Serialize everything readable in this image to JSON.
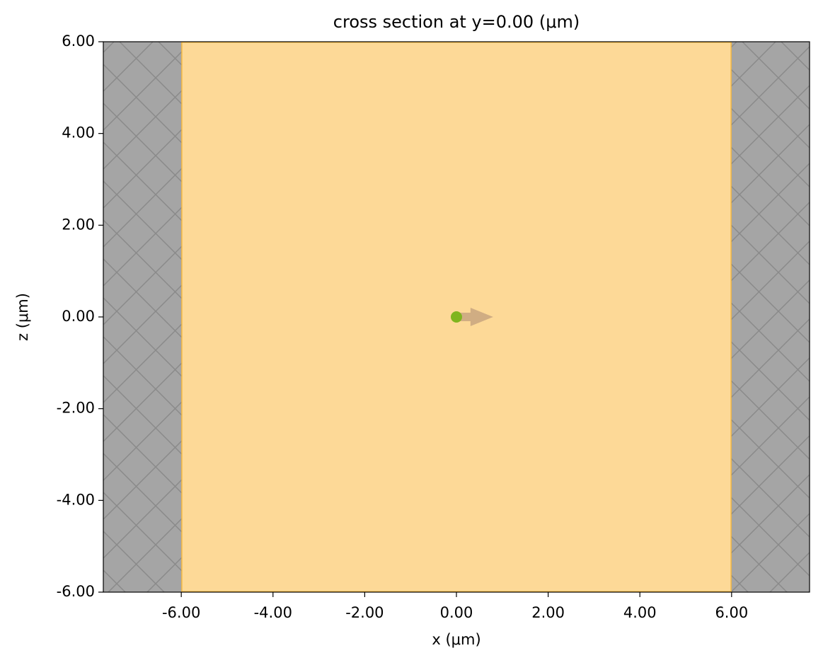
{
  "chart_data": {
    "type": "cross-section",
    "title": "cross section at y=0.00 (μm)",
    "xlabel": "x (μm)",
    "ylabel": "z (μm)",
    "xlim": [
      -7.7,
      7.7
    ],
    "ylim": [
      -6,
      6
    ],
    "xticks": [
      {
        "value": -6,
        "label": "-6.00"
      },
      {
        "value": -4,
        "label": "-4.00"
      },
      {
        "value": -2,
        "label": "-2.00"
      },
      {
        "value": 0,
        "label": "0.00"
      },
      {
        "value": 2,
        "label": "2.00"
      },
      {
        "value": 4,
        "label": "4.00"
      },
      {
        "value": 6,
        "label": "6.00"
      }
    ],
    "yticks": [
      {
        "value": -6,
        "label": "-6.00"
      },
      {
        "value": -4,
        "label": "-4.00"
      },
      {
        "value": -2,
        "label": "-2.00"
      },
      {
        "value": 0,
        "label": "0.00"
      },
      {
        "value": 2,
        "label": "2.00"
      },
      {
        "value": 4,
        "label": "4.00"
      },
      {
        "value": 6,
        "label": "6.00"
      }
    ],
    "medium": {
      "x": [
        -6,
        6
      ],
      "z": [
        -6,
        6
      ],
      "color": "#fdd997",
      "edge": "#f5b840"
    },
    "pml": [
      {
        "x": [
          -7.7,
          -6
        ],
        "z": [
          -6,
          6
        ],
        "color": "#a5a5a5"
      },
      {
        "x": [
          6,
          7.7
        ],
        "z": [
          -6,
          6
        ],
        "color": "#a5a5a5"
      }
    ],
    "source": {
      "x": 0,
      "z": 0,
      "color": "#7fb51f"
    },
    "direction": {
      "dx": 0.8,
      "color": "#c8a57f"
    }
  }
}
